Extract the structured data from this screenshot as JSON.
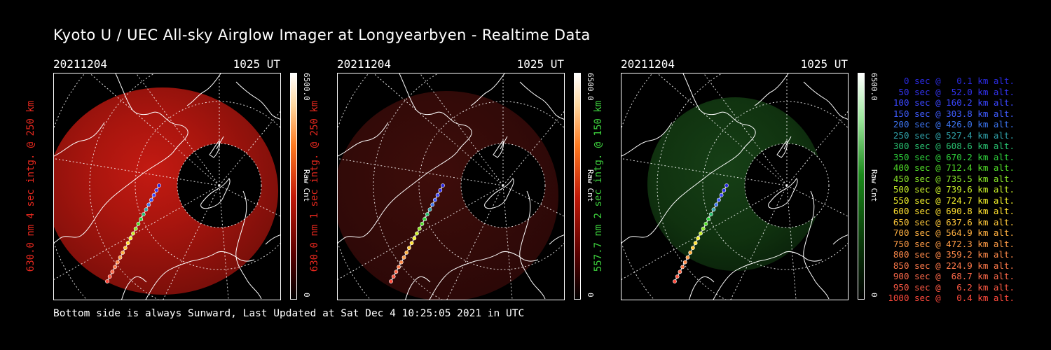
{
  "title": "Kyoto U / UEC All-sky Airglow Imager at Longyearbyen - Realtime Data",
  "footer": "Bottom side is always Sunward, Last Updated at Sat Dec  4 10:25:05 2021 in UTC",
  "panels": [
    {
      "date": "20211204",
      "time": "1025 UT",
      "label": "630.0 nm 4 sec intg. @ 250 km",
      "label_color": "#e8281e",
      "cbar_max": "6500.0",
      "cbar_unit": "Raw Cnt",
      "cbar_min": "0",
      "colormap": "red",
      "brightness": "bright"
    },
    {
      "date": "20211204",
      "time": "1025 UT",
      "label": "630.0 nm 1 sec intg. @ 250 km",
      "label_color": "#e8281e",
      "cbar_max": "6500.0",
      "cbar_unit": "Raw Cnt",
      "cbar_min": "0",
      "colormap": "red",
      "brightness": "dim"
    },
    {
      "date": "20211204",
      "time": "1025 UT",
      "label": "557.7 nm 2 sec intg. @ 150 km",
      "label_color": "#3dd23d",
      "cbar_max": "6500.0",
      "cbar_unit": "Raw Cnt",
      "cbar_min": "0",
      "colormap": "green",
      "brightness": "dim"
    }
  ],
  "trajectory_legend": [
    {
      "text": "   0 sec @   0.1 km alt.",
      "color": "#2a2ae0"
    },
    {
      "text": "  50 sec @  52.0 km alt.",
      "color": "#3232f0"
    },
    {
      "text": " 100 sec @ 160.2 km alt.",
      "color": "#3a46ff"
    },
    {
      "text": " 150 sec @ 303.8 km alt.",
      "color": "#3f5cff"
    },
    {
      "text": " 200 sec @ 426.0 km alt.",
      "color": "#3c74f0"
    },
    {
      "text": " 250 sec @ 527.4 km alt.",
      "color": "#2fa0a8"
    },
    {
      "text": " 300 sec @ 608.6 km alt.",
      "color": "#28c070"
    },
    {
      "text": " 350 sec @ 670.2 km alt.",
      "color": "#2ed23c"
    },
    {
      "text": " 400 sec @ 712.4 km alt.",
      "color": "#50dc28"
    },
    {
      "text": " 450 sec @ 735.5 km alt.",
      "color": "#8ae628"
    },
    {
      "text": " 500 sec @ 739.6 km alt.",
      "color": "#c8ee28"
    },
    {
      "text": " 550 sec @ 724.7 km alt.",
      "color": "#f2f02a"
    },
    {
      "text": " 600 sec @ 690.8 km alt.",
      "color": "#ffe030"
    },
    {
      "text": " 650 sec @ 637.6 km alt.",
      "color": "#ffc83a"
    },
    {
      "text": " 700 sec @ 564.9 km alt.",
      "color": "#ffb040"
    },
    {
      "text": " 750 sec @ 472.3 km alt.",
      "color": "#ff9c46"
    },
    {
      "text": " 800 sec @ 359.2 km alt.",
      "color": "#ff8a4a"
    },
    {
      "text": " 850 sec @ 224.9 km alt.",
      "color": "#ff7a4a"
    },
    {
      "text": " 900 sec @  68.7 km alt.",
      "color": "#ff6a4a"
    },
    {
      "text": " 950 sec @   6.2 km alt.",
      "color": "#ff5a44"
    },
    {
      "text": "1000 sec @   0.4 km alt.",
      "color": "#ff4a3c"
    }
  ]
}
